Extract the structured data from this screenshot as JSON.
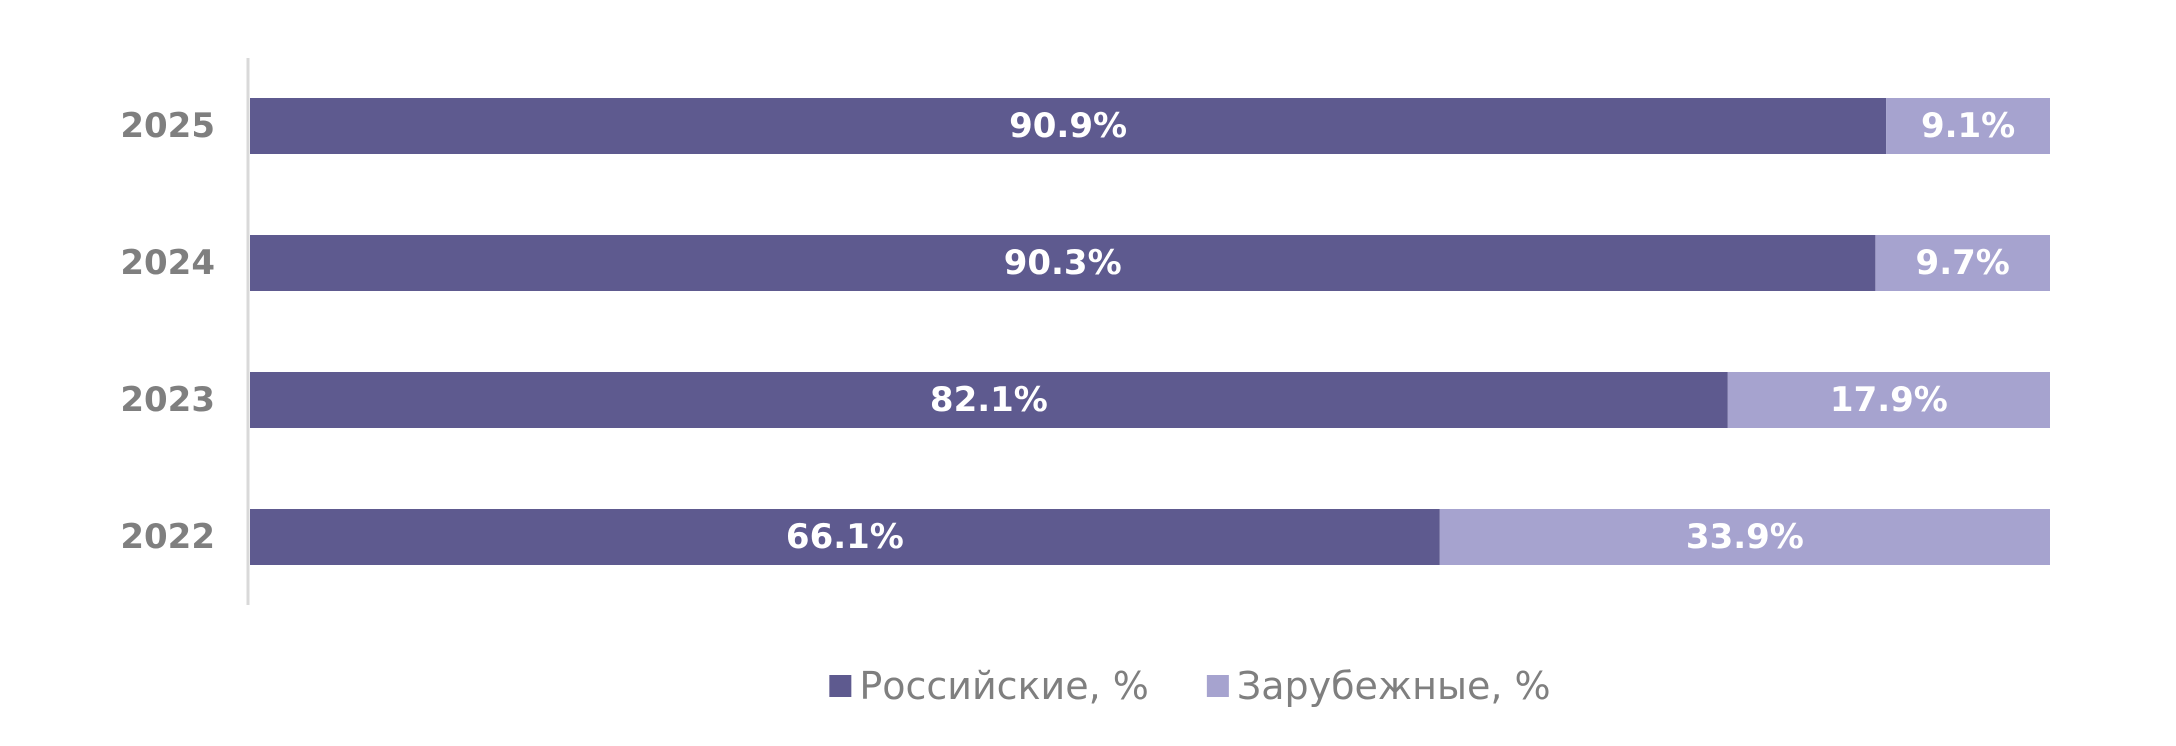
{
  "chart_data": {
    "type": "bar",
    "orientation": "horizontal",
    "stacked": true,
    "categories": [
      "2025",
      "2024",
      "2023",
      "2022"
    ],
    "series": [
      {
        "name": "Российские, %",
        "values": [
          90.9,
          90.3,
          82.1,
          66.1
        ],
        "labels": [
          "90.9%",
          "90.3%",
          "82.1%",
          "66.1%"
        ],
        "color": "#5e5a8f"
      },
      {
        "name": "Зарубежные, %",
        "values": [
          9.1,
          9.7,
          17.9,
          33.9
        ],
        "labels": [
          "9.1%",
          "9.7%",
          "17.9%",
          "33.9%"
        ],
        "color": "#a6a3cf"
      }
    ],
    "xlim": [
      0,
      100
    ],
    "grid": false,
    "legend": "bottom",
    "axis_color": "#d9d9d9",
    "label_color": "#7f7f7f"
  }
}
